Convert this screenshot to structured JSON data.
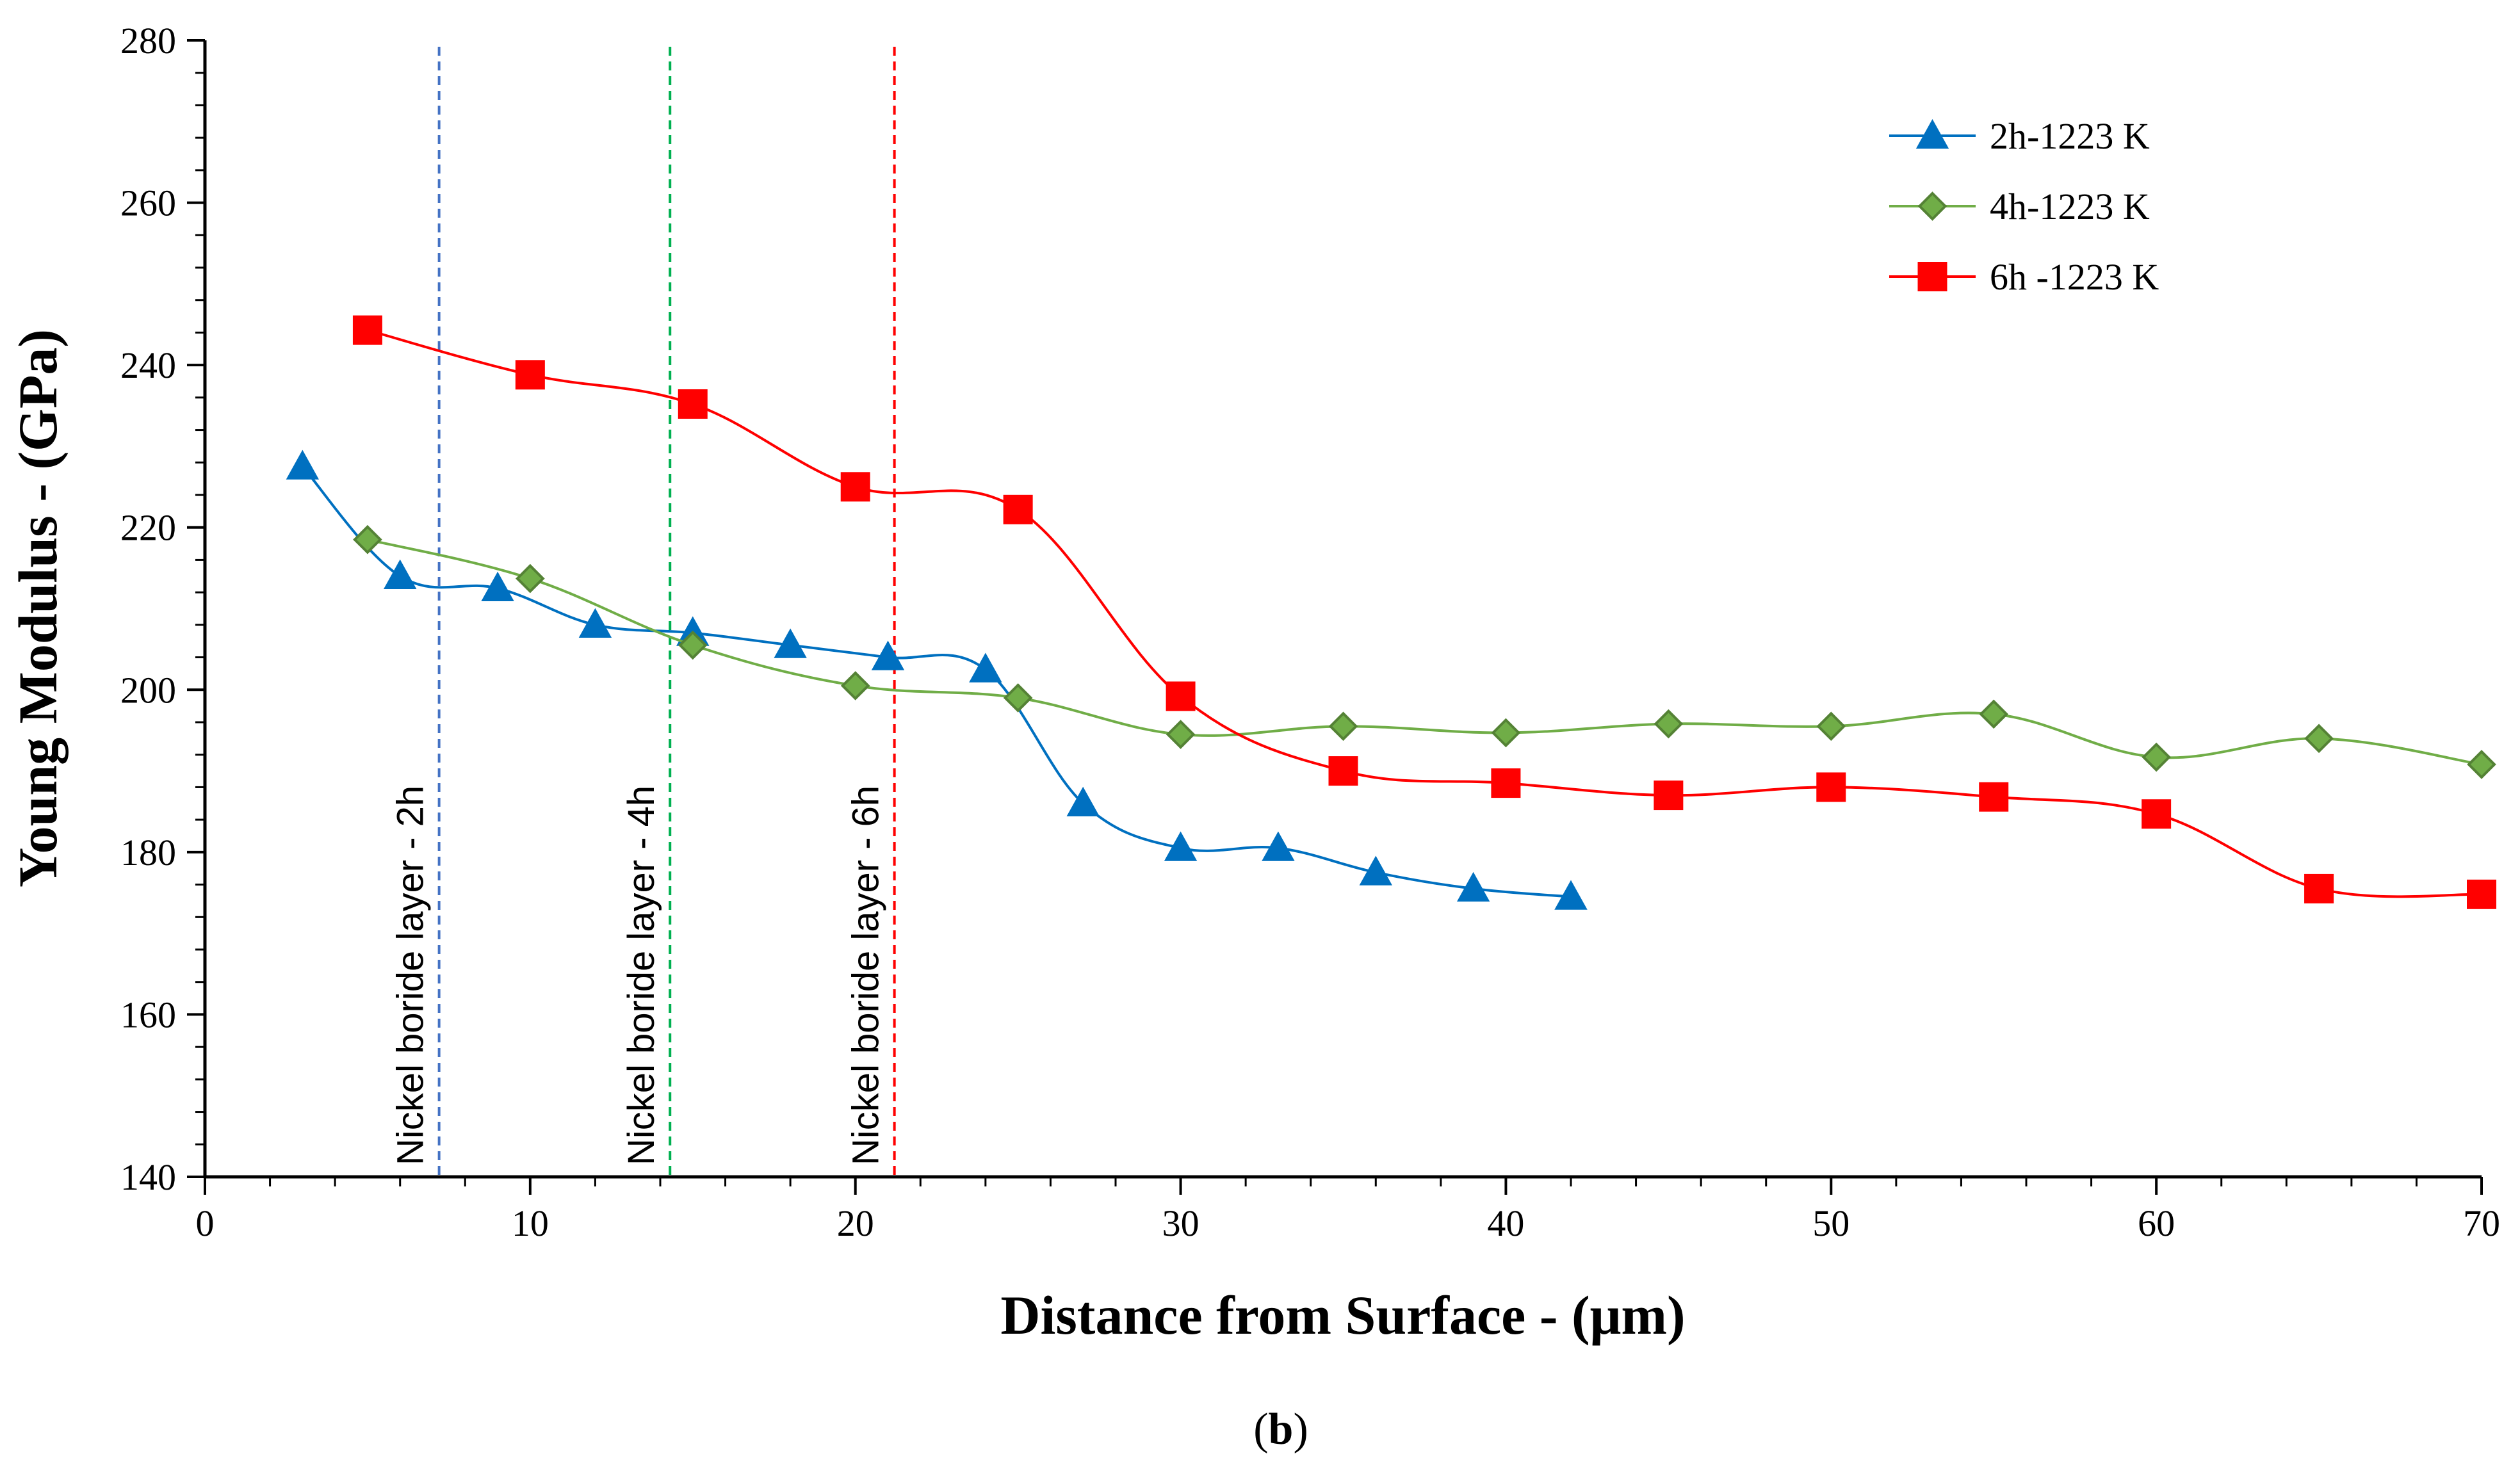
{
  "chart_data": {
    "type": "line",
    "xlabel": "Distance from Surface - (μm)",
    "ylabel": "Young Modulus - (GPa)",
    "caption_open": "(",
    "caption_letter": "b",
    "caption_close": ")",
    "xlim": [
      0,
      70
    ],
    "ylim": [
      140,
      280
    ],
    "x_ticks": [
      "0",
      "10",
      "20",
      "30",
      "40",
      "50",
      "60",
      "70"
    ],
    "y_ticks": [
      "140",
      "160",
      "180",
      "200",
      "220",
      "240",
      "260",
      "280"
    ],
    "grid": false,
    "legend_position": "top-right",
    "series": [
      {
        "name": "2h-1223 K",
        "color": "#0070c0",
        "marker": "triangle",
        "x": [
          3,
          6,
          9,
          12,
          15,
          18,
          21,
          24,
          27,
          30,
          33,
          36,
          39,
          42
        ],
        "values": [
          227.5,
          214,
          212.5,
          208,
          207,
          205.5,
          204,
          202.5,
          186,
          180.5,
          180.5,
          177.5,
          175.5,
          174.5
        ]
      },
      {
        "name": "4h-1223 K",
        "color": "#70ad47",
        "marker": "diamond",
        "x": [
          5,
          10,
          15,
          20,
          25,
          30,
          35,
          40,
          45,
          50,
          55,
          60,
          65,
          70
        ],
        "values": [
          218.5,
          213.7,
          205.5,
          200.5,
          199,
          194.5,
          195.5,
          194.7,
          195.8,
          195.5,
          197,
          191.7,
          194,
          190.8
        ]
      },
      {
        "name": "6h -1223 K",
        "color": "#ff0000",
        "marker": "square",
        "x": [
          5,
          10,
          15,
          20,
          25,
          30,
          35,
          40,
          45,
          50,
          55,
          60,
          65,
          70
        ],
        "values": [
          244.3,
          238.8,
          235.2,
          225,
          222.2,
          199.2,
          190,
          188.5,
          187,
          188,
          186.8,
          184.7,
          175.5,
          174.8
        ]
      }
    ],
    "annotations": [
      {
        "label": "Nickel boride layer - 2h",
        "x": 7.2,
        "color": "#4472c4"
      },
      {
        "label": "Nickel boride layer - 4h",
        "x": 14.3,
        "color": "#00b050"
      },
      {
        "label": "Nickel boride layer - 6h",
        "x": 21.2,
        "color": "#ff0000"
      }
    ]
  }
}
